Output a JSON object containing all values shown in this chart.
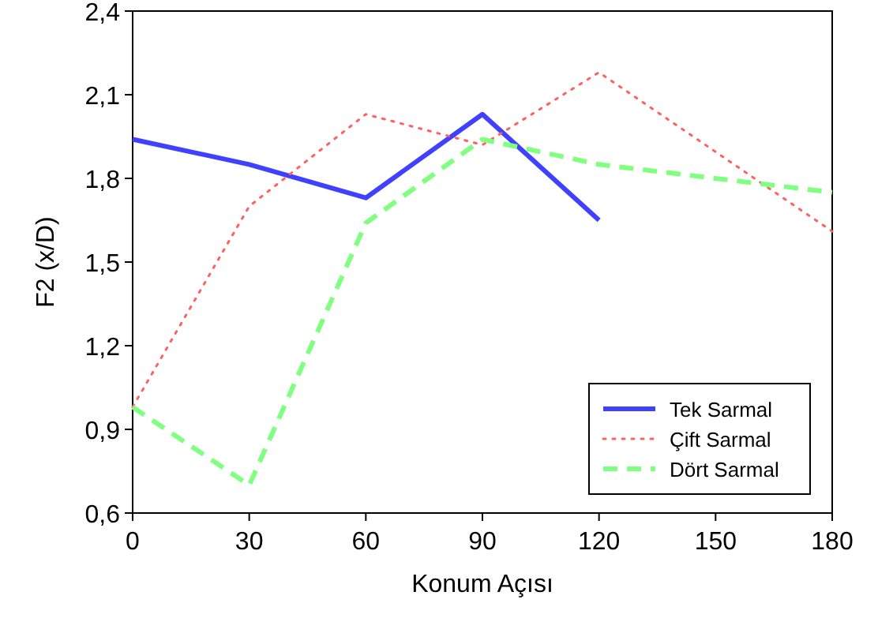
{
  "chart_data": {
    "type": "line",
    "xlabel": "Konum Açısı",
    "ylabel": "F2 (x/D)",
    "x": [
      0,
      30,
      60,
      90,
      120,
      150,
      180
    ],
    "xlim": [
      0,
      180
    ],
    "xticks": [
      0,
      30,
      60,
      90,
      120,
      150,
      180
    ],
    "ylim": [
      0.6,
      2.4
    ],
    "yticks": [
      {
        "value": 0.6,
        "label": "0,6"
      },
      {
        "value": 0.9,
        "label": "0,9"
      },
      {
        "value": 1.2,
        "label": "1,2"
      },
      {
        "value": 1.5,
        "label": "1,5"
      },
      {
        "value": 1.8,
        "label": "1,8"
      },
      {
        "value": 2.1,
        "label": "2,1"
      },
      {
        "value": 2.4,
        "label": "2,4"
      }
    ],
    "legend": "bottom right",
    "grid": false,
    "series": [
      {
        "name": "Tek Sarmal",
        "color": "#4040ff",
        "line_style": "solid",
        "values": [
          1.94,
          1.85,
          1.73,
          2.03,
          1.65,
          null,
          null
        ]
      },
      {
        "name": "Çift Sarmal",
        "color": "#ff6060",
        "line_style": "dotted",
        "values": [
          0.98,
          1.7,
          2.03,
          1.92,
          2.18,
          null,
          1.61
        ]
      },
      {
        "name": "Dört Sarmal",
        "color": "#80ff80",
        "line_style": "dashed",
        "values": [
          0.98,
          0.7,
          1.64,
          1.94,
          1.85,
          null,
          1.75
        ]
      }
    ]
  }
}
